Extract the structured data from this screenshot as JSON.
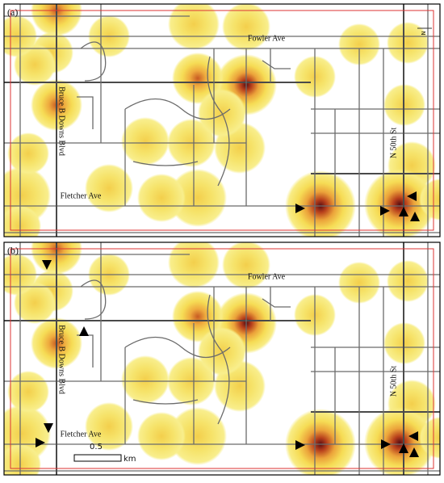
{
  "panels": [
    {
      "label": "(a)",
      "streets": {
        "fowler": "Fowler Ave",
        "bruce_b_downs": "Bruce B Downs Blvd",
        "fletcher": "Fletcher Ave",
        "n_50th": "N 50th St"
      },
      "north": "N"
    },
    {
      "label": "(b)",
      "streets": {
        "fowler": "Fowler Ave",
        "bruce_b_downs": "Bruce B Downs Blvd",
        "fletcher": "Fletcher Ave",
        "n_50th": "N 50th St"
      },
      "scale_bar": {
        "value": "0.5",
        "unit": "km"
      }
    }
  ]
}
